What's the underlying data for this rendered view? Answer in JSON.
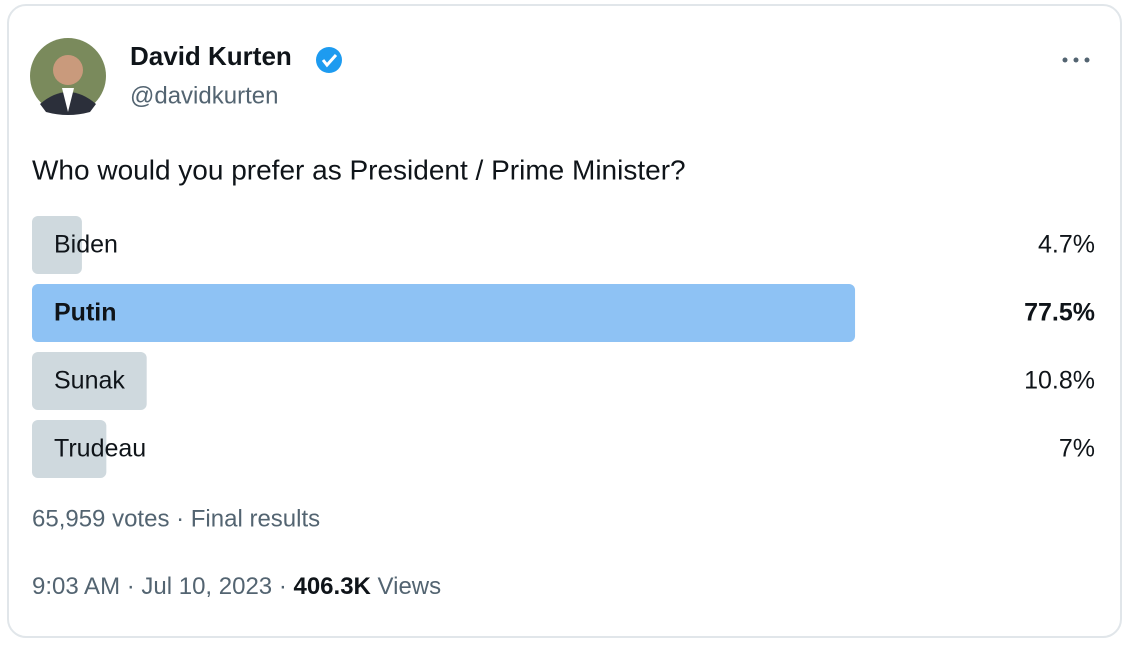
{
  "author": {
    "name": "David Kurten",
    "handle": "@davidkurten"
  },
  "question": "Who would you prefer as President / Prime Minister?",
  "poll": {
    "labels": [
      "Biden",
      "Putin",
      "Sunak",
      "Trudeau"
    ],
    "values": [
      4.7,
      77.5,
      10.8,
      7
    ],
    "value_labels": [
      "4.7%",
      "77.5%",
      "10.8%",
      "7%"
    ],
    "xlim": [
      0,
      100
    ],
    "bar_color": "#cfd9de",
    "winner_color": "#8ec2f4"
  },
  "footer": {
    "votes": "65,959 votes · Final results",
    "timestamp": "9:03 AM · Jul 10, 2023 ·",
    "views_count": "406.3K",
    "views_label": "Views"
  }
}
